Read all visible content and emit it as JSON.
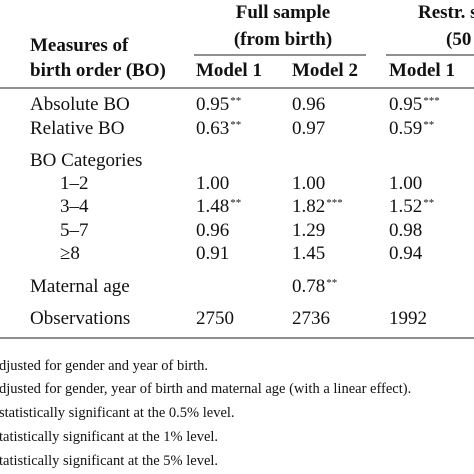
{
  "header": {
    "groups": [
      "Full sample",
      "(from birth)",
      "Restr. s",
      "(50"
    ],
    "stub": [
      "Measures of",
      "birth order (BO)"
    ],
    "models": [
      "Model 1",
      "Model 2",
      "Model 1"
    ]
  },
  "table": {
    "rows": [
      {
        "label": "Absolute BO",
        "cells": [
          {
            "text": "0.95",
            "sup": "**"
          },
          {
            "text": "0.96"
          },
          {
            "text": "0.95",
            "sup": "***"
          }
        ]
      },
      {
        "label": "Relative BO",
        "cells": [
          {
            "text": "0.63",
            "sup": "**"
          },
          {
            "text": "0.97"
          },
          {
            "text": "0.59",
            "sup": "**"
          }
        ]
      },
      {
        "label": "BO Categories"
      },
      {
        "label": "1–2",
        "indent": true,
        "cells": [
          {
            "text": "1.00"
          },
          {
            "text": "1.00"
          },
          {
            "text": "1.00"
          }
        ]
      },
      {
        "label": "3–4",
        "indent": true,
        "cells": [
          {
            "text": "1.48",
            "sup": "**"
          },
          {
            "text": "1.82",
            "sup": "***"
          },
          {
            "text": "1.52",
            "sup": "**"
          }
        ]
      },
      {
        "label": "5–7",
        "indent": true,
        "cells": [
          {
            "text": "0.96"
          },
          {
            "text": "1.29"
          },
          {
            "text": "0.98"
          }
        ]
      },
      {
        "label": "≥8",
        "indent": true,
        "cells": [
          {
            "text": "0.91"
          },
          {
            "text": "1.45"
          },
          {
            "text": "0.94"
          }
        ]
      },
      {
        "label": "Maternal age",
        "cells": [
          null,
          {
            "text": "0.78",
            "sup": "**"
          },
          null
        ]
      },
      {
        "label": "Observations",
        "cells": [
          {
            "text": "2750"
          },
          {
            "text": "2736"
          },
          {
            "text": "1992"
          }
        ]
      }
    ]
  },
  "footnotes": [
    "djusted for gender and year of birth.",
    "djusted for gender, year of birth and maternal age (with a linear effect).",
    "statistically significant at the 0.5% level.",
    "tatistically significant at the 1% level.",
    "tatistically significant at the 5% level."
  ]
}
